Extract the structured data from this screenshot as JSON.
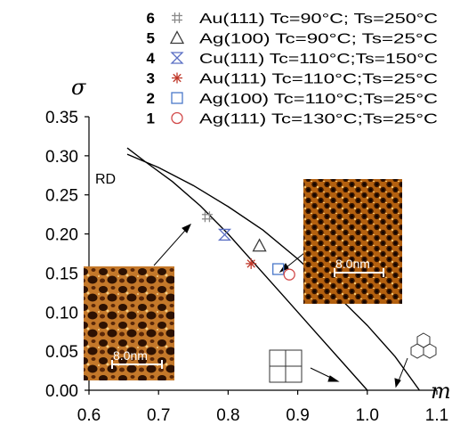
{
  "chart_data": {
    "type": "scatter",
    "xlabel": "m",
    "ylabel": "σ",
    "xlim": [
      0.6,
      1.1
    ],
    "ylim": [
      0.0,
      0.35
    ],
    "xticks": [
      "0.6",
      "0.7",
      "0.8",
      "0.9",
      "1.0",
      "1.1"
    ],
    "yticks": [
      "0.00",
      "0.05",
      "0.10",
      "0.15",
      "0.20",
      "0.25",
      "0.30",
      "0.35"
    ],
    "grid": false,
    "legend_position": "top",
    "region_label": "RD",
    "inset_scale_left": "8.0nm",
    "inset_scale_right": "8.0nm",
    "series": [
      {
        "index": "6",
        "name": "Au(111) Tc=90°C; Ts=250°C",
        "marker": "hash",
        "color": "#8a8a8a",
        "x": 0.77,
        "y": 0.222
      },
      {
        "index": "5",
        "name": "Ag(100) Tc=90°C; Ts=25°C",
        "marker": "triangle",
        "color": "#3a3a3a",
        "x": 0.845,
        "y": 0.185
      },
      {
        "index": "4",
        "name": "Cu(111) Tc=110°C;Ts=150°C",
        "marker": "hourglass",
        "color": "#5a6fc4",
        "x": 0.795,
        "y": 0.199
      },
      {
        "index": "3",
        "name": "Au(111) Tc=110°C;Ts=25°C",
        "marker": "asterisk",
        "color": "#c0392b",
        "x": 0.833,
        "y": 0.162
      },
      {
        "index": "2",
        "name": "Ag(100) Tc=110°C;Ts=25°C",
        "marker": "square",
        "color": "#4a78c9",
        "x": 0.872,
        "y": 0.155
      },
      {
        "index": "1",
        "name": "Ag(111) Tc=130°C;Ts=25°C",
        "marker": "circle",
        "color": "#d24a4a",
        "x": 0.888,
        "y": 0.148
      }
    ],
    "curves": [
      {
        "name": "",
        "x": [
          0.655,
          0.68,
          0.72,
          0.76,
          0.8,
          0.84,
          0.88,
          0.92,
          0.96,
          1.0
        ],
        "y": [
          0.31,
          0.293,
          0.267,
          0.236,
          0.2,
          0.16,
          0.12,
          0.08,
          0.04,
          0.0
        ]
      },
      {
        "name": "",
        "x": [
          0.655,
          0.7,
          0.75,
          0.8,
          0.85,
          0.9,
          0.95,
          1.0,
          1.04,
          1.075
        ],
        "y": [
          0.302,
          0.285,
          0.262,
          0.235,
          0.205,
          0.168,
          0.127,
          0.083,
          0.043,
          0.0
        ]
      }
    ]
  }
}
